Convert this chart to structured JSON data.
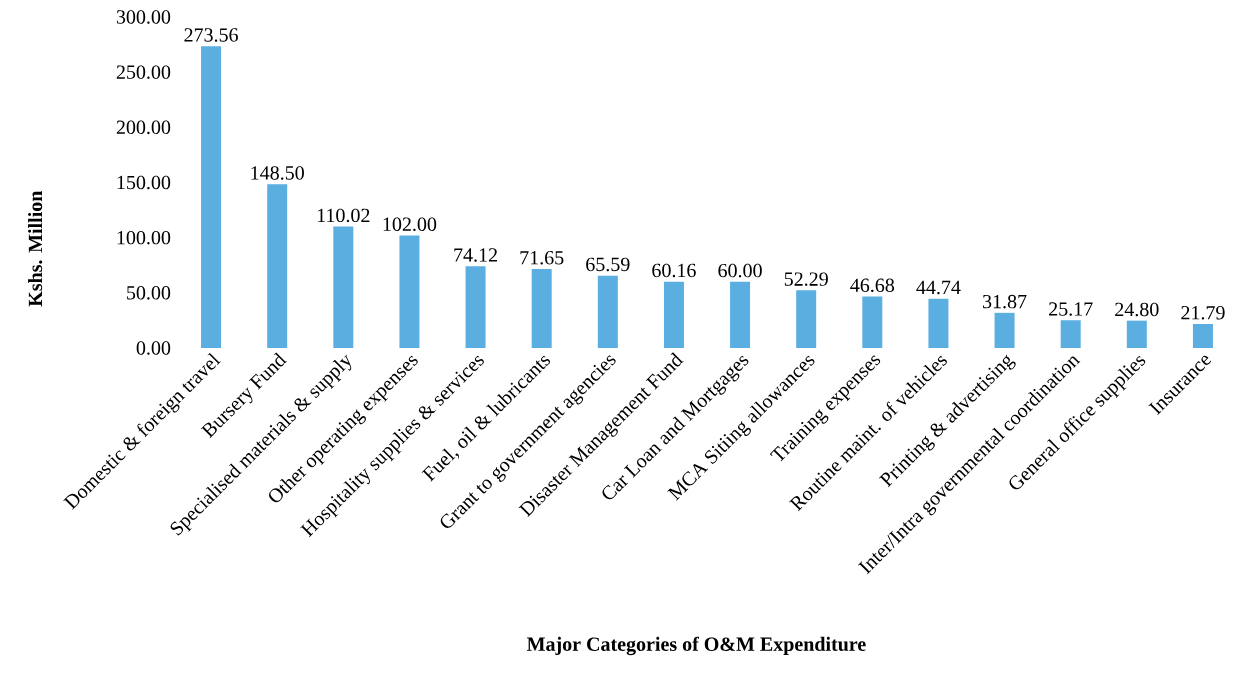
{
  "chart_data": {
    "type": "bar",
    "xlabel": "Major Categories of O&M Expenditure",
    "ylabel": "Kshs. Million",
    "categories": [
      "Domestic  & foreign travel",
      "Bursery Fund",
      "Specialised materials & supply",
      "Other operating expenses",
      "Hospitality supplies &  services",
      "Fuel, oil &  lubricants",
      "Grant to government agencies",
      "Disaster Management Fund",
      "Car  Loan and  Mortgages",
      "MCA Sitiing allowances",
      "Training expenses",
      "Routine maint. of vehicles",
      "Printing & advertising",
      "Inter/Intra governmental coordination",
      "General office supplies",
      "Insurance"
    ],
    "values": [
      273.56,
      148.5,
      110.02,
      102.0,
      74.12,
      71.65,
      65.59,
      60.16,
      60.0,
      52.29,
      46.68,
      44.74,
      31.87,
      25.17,
      24.8,
      21.79
    ],
    "value_labels": [
      "273.56",
      "148.50",
      "110.02",
      "102.00",
      "74.12",
      "71.65",
      "65.59",
      "60.16",
      "60.00",
      "52.29",
      "46.68",
      "44.74",
      "31.87",
      "25.17",
      "24.80",
      "21.79"
    ],
    "color": "#5aaee0",
    "ylim": [
      0,
      300
    ],
    "yticks": [
      {
        "value": 0,
        "label": "0.00"
      },
      {
        "value": 50,
        "label": "50.00"
      },
      {
        "value": 100,
        "label": "100.00"
      },
      {
        "value": 150,
        "label": "150.00"
      },
      {
        "value": 200,
        "label": "200.00"
      },
      {
        "value": 250,
        "label": "250.00"
      },
      {
        "value": 300,
        "label": "300.00"
      }
    ],
    "grid": false
  }
}
